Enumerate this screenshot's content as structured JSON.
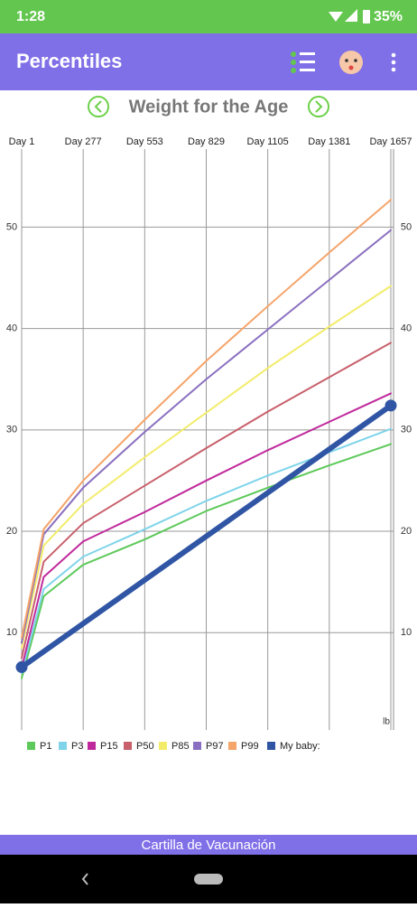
{
  "status_bar": {
    "time": "1:28",
    "battery": "35%"
  },
  "app_bar": {
    "title": "Percentiles"
  },
  "chart_data": {
    "type": "line",
    "title": "Weight for the Age",
    "unit": "lb",
    "x": [
      1,
      100,
      277,
      553,
      829,
      1105,
      1381,
      1657
    ],
    "xlim": [
      1,
      1657
    ],
    "xticks": [
      {
        "value": 1,
        "label": "Day 1"
      },
      {
        "value": 277,
        "label": "Day 277"
      },
      {
        "value": 553,
        "label": "Day 553"
      },
      {
        "value": 829,
        "label": "Day 829"
      },
      {
        "value": 1105,
        "label": "Day 1105"
      },
      {
        "value": 1381,
        "label": "Day 1381"
      },
      {
        "value": 1657,
        "label": "Day 1657"
      }
    ],
    "ylim": [
      0.4,
      57.7
    ],
    "yticks": [
      10,
      20,
      30,
      40,
      50
    ],
    "grid": true,
    "series": [
      {
        "name": "P1",
        "color": "#5dc95a",
        "values": [
          5.5,
          13.6,
          16.7,
          19.2,
          22,
          24.3,
          26.5,
          28.6
        ]
      },
      {
        "name": "P3",
        "color": "#7fd4ea",
        "values": [
          6,
          14.3,
          17.5,
          20.2,
          23,
          25.5,
          27.8,
          30.1
        ]
      },
      {
        "name": "P15",
        "color": "#c0299b",
        "values": [
          6.5,
          15.5,
          19,
          21.9,
          25,
          28,
          30.8,
          33.6
        ]
      },
      {
        "name": "P50",
        "color": "#c8606c",
        "values": [
          7.5,
          17,
          20.8,
          24.5,
          28.2,
          31.8,
          35.2,
          38.6
        ]
      },
      {
        "name": "P85",
        "color": "#f2ec6a",
        "values": [
          8.5,
          18.6,
          22.7,
          27.3,
          31.7,
          36.1,
          40.2,
          44.2
        ]
      },
      {
        "name": "P97",
        "color": "#8a6fc0",
        "values": [
          9,
          19.7,
          24.3,
          29.8,
          35,
          39.9,
          44.8,
          49.7
        ]
      },
      {
        "name": "P99",
        "color": "#f5a46a",
        "values": [
          9.5,
          20.2,
          25,
          31,
          36.8,
          42.2,
          47.5,
          52.7
        ]
      },
      {
        "name": "My baby:",
        "color": "#2f55a4",
        "x": [
          1,
          1657
        ],
        "values": [
          6.6,
          32.4
        ]
      }
    ]
  },
  "footer": {
    "label": "Cartilla de Vacunación"
  }
}
